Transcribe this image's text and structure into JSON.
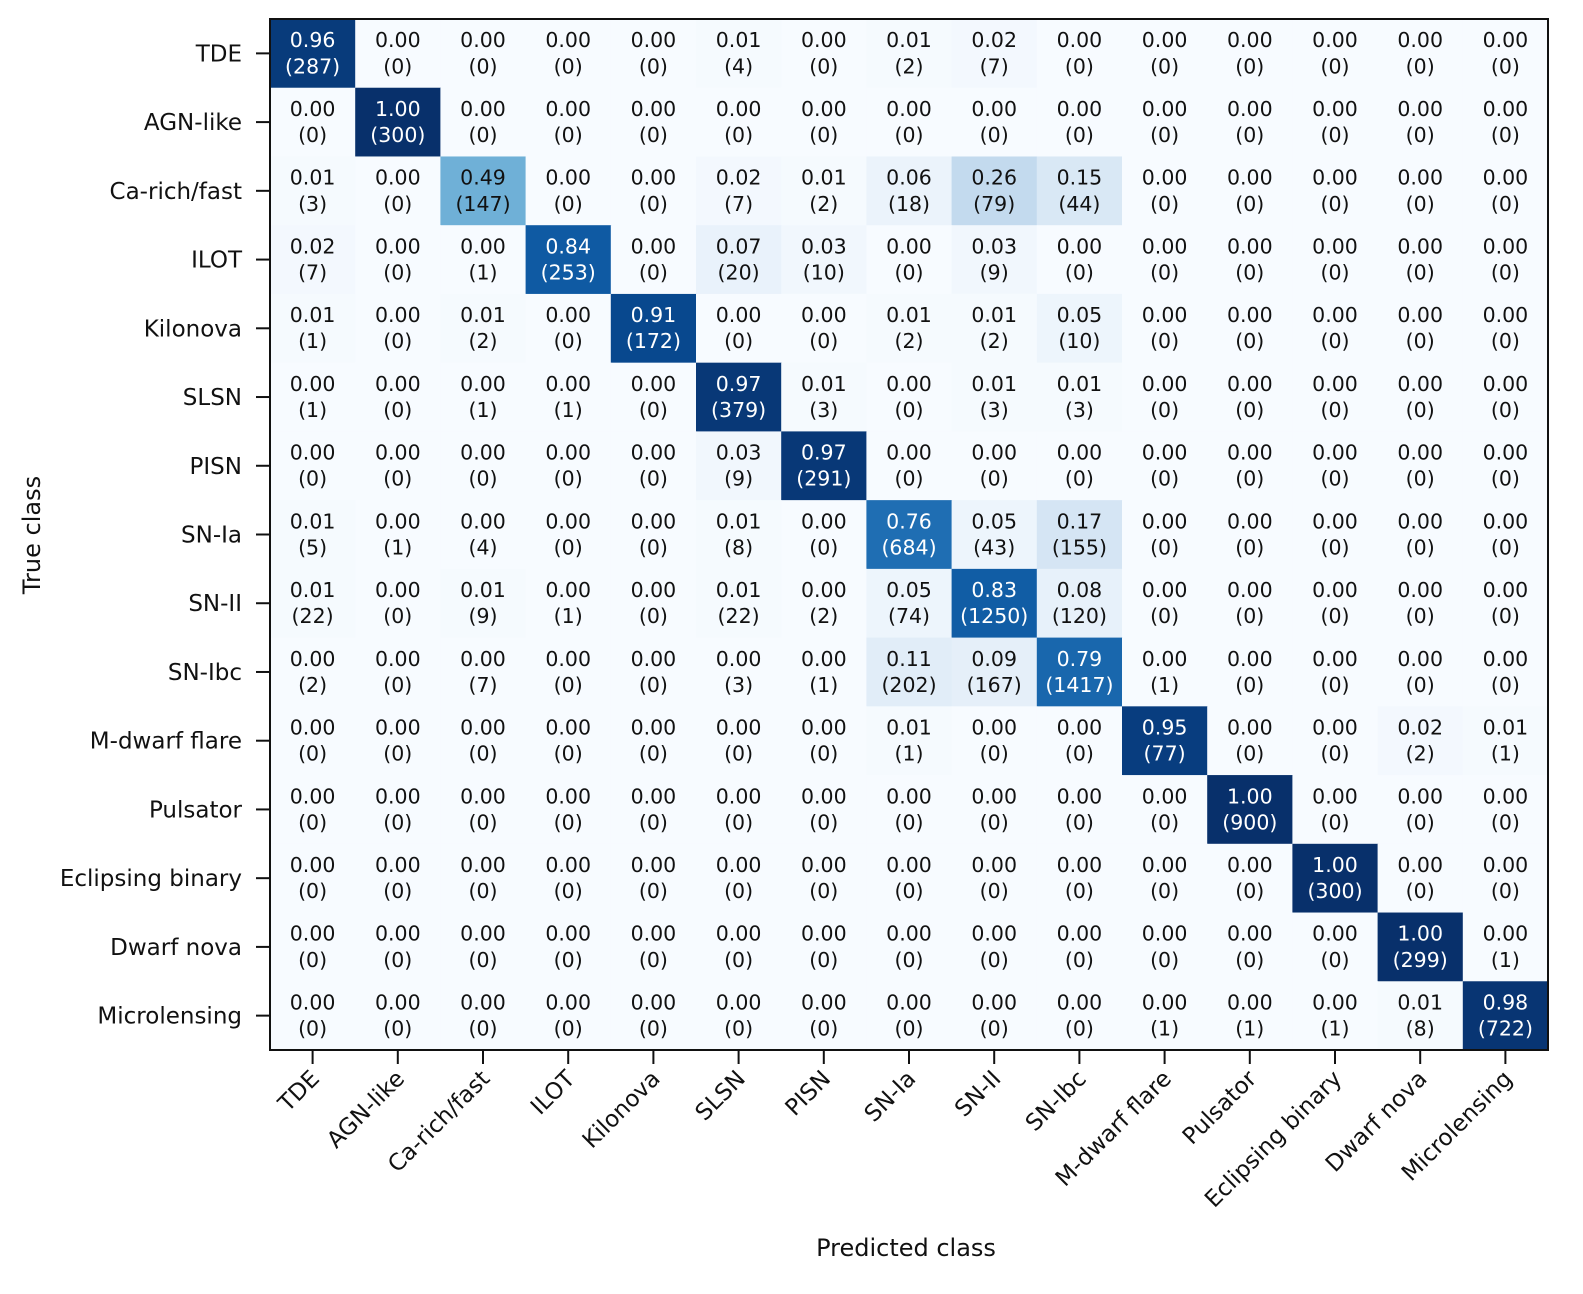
{
  "chart_data": {
    "type": "heatmap",
    "title": "",
    "xlabel": "Predicted class",
    "ylabel": "True class",
    "classes": [
      "TDE",
      "AGN-like",
      "Ca-rich/fast",
      "ILOT",
      "Kilonova",
      "SLSN",
      "PISN",
      "SN-Ia",
      "SN-II",
      "SN-Ibc",
      "M-dwarf flare",
      "Pulsator",
      "Eclipsing binary",
      "Dwarf nova",
      "Microlensing"
    ],
    "fractions": [
      [
        0.96,
        0.0,
        0.0,
        0.0,
        0.0,
        0.01,
        0.0,
        0.01,
        0.02,
        0.0,
        0.0,
        0.0,
        0.0,
        0.0,
        0.0
      ],
      [
        0.0,
        1.0,
        0.0,
        0.0,
        0.0,
        0.0,
        0.0,
        0.0,
        0.0,
        0.0,
        0.0,
        0.0,
        0.0,
        0.0,
        0.0
      ],
      [
        0.01,
        0.0,
        0.49,
        0.0,
        0.0,
        0.02,
        0.01,
        0.06,
        0.26,
        0.15,
        0.0,
        0.0,
        0.0,
        0.0,
        0.0
      ],
      [
        0.02,
        0.0,
        0.0,
        0.84,
        0.0,
        0.07,
        0.03,
        0.0,
        0.03,
        0.0,
        0.0,
        0.0,
        0.0,
        0.0,
        0.0
      ],
      [
        0.01,
        0.0,
        0.01,
        0.0,
        0.91,
        0.0,
        0.0,
        0.01,
        0.01,
        0.05,
        0.0,
        0.0,
        0.0,
        0.0,
        0.0
      ],
      [
        0.0,
        0.0,
        0.0,
        0.0,
        0.0,
        0.97,
        0.01,
        0.0,
        0.01,
        0.01,
        0.0,
        0.0,
        0.0,
        0.0,
        0.0
      ],
      [
        0.0,
        0.0,
        0.0,
        0.0,
        0.0,
        0.03,
        0.97,
        0.0,
        0.0,
        0.0,
        0.0,
        0.0,
        0.0,
        0.0,
        0.0
      ],
      [
        0.01,
        0.0,
        0.0,
        0.0,
        0.0,
        0.01,
        0.0,
        0.76,
        0.05,
        0.17,
        0.0,
        0.0,
        0.0,
        0.0,
        0.0
      ],
      [
        0.01,
        0.0,
        0.01,
        0.0,
        0.0,
        0.01,
        0.0,
        0.05,
        0.83,
        0.08,
        0.0,
        0.0,
        0.0,
        0.0,
        0.0
      ],
      [
        0.0,
        0.0,
        0.0,
        0.0,
        0.0,
        0.0,
        0.0,
        0.11,
        0.09,
        0.79,
        0.0,
        0.0,
        0.0,
        0.0,
        0.0
      ],
      [
        0.0,
        0.0,
        0.0,
        0.0,
        0.0,
        0.0,
        0.0,
        0.01,
        0.0,
        0.0,
        0.95,
        0.0,
        0.0,
        0.02,
        0.01
      ],
      [
        0.0,
        0.0,
        0.0,
        0.0,
        0.0,
        0.0,
        0.0,
        0.0,
        0.0,
        0.0,
        0.0,
        1.0,
        0.0,
        0.0,
        0.0
      ],
      [
        0.0,
        0.0,
        0.0,
        0.0,
        0.0,
        0.0,
        0.0,
        0.0,
        0.0,
        0.0,
        0.0,
        0.0,
        1.0,
        0.0,
        0.0
      ],
      [
        0.0,
        0.0,
        0.0,
        0.0,
        0.0,
        0.0,
        0.0,
        0.0,
        0.0,
        0.0,
        0.0,
        0.0,
        0.0,
        1.0,
        0.0
      ],
      [
        0.0,
        0.0,
        0.0,
        0.0,
        0.0,
        0.0,
        0.0,
        0.0,
        0.0,
        0.0,
        0.0,
        0.0,
        0.0,
        0.01,
        0.98
      ]
    ],
    "counts": [
      [
        287,
        0,
        0,
        0,
        0,
        4,
        0,
        2,
        7,
        0,
        0,
        0,
        0,
        0,
        0
      ],
      [
        0,
        300,
        0,
        0,
        0,
        0,
        0,
        0,
        0,
        0,
        0,
        0,
        0,
        0,
        0
      ],
      [
        3,
        0,
        147,
        0,
        0,
        7,
        2,
        18,
        79,
        44,
        0,
        0,
        0,
        0,
        0
      ],
      [
        7,
        0,
        1,
        253,
        0,
        20,
        10,
        0,
        9,
        0,
        0,
        0,
        0,
        0,
        0
      ],
      [
        1,
        0,
        2,
        0,
        172,
        0,
        0,
        2,
        2,
        10,
        0,
        0,
        0,
        0,
        0
      ],
      [
        1,
        0,
        1,
        1,
        0,
        379,
        3,
        0,
        3,
        3,
        0,
        0,
        0,
        0,
        0
      ],
      [
        0,
        0,
        0,
        0,
        0,
        9,
        291,
        0,
        0,
        0,
        0,
        0,
        0,
        0,
        0
      ],
      [
        5,
        1,
        4,
        0,
        0,
        8,
        0,
        684,
        43,
        155,
        0,
        0,
        0,
        0,
        0
      ],
      [
        22,
        0,
        9,
        1,
        0,
        22,
        2,
        74,
        1250,
        120,
        0,
        0,
        0,
        0,
        0
      ],
      [
        2,
        0,
        7,
        0,
        0,
        3,
        1,
        202,
        167,
        1417,
        1,
        0,
        0,
        0,
        0
      ],
      [
        0,
        0,
        0,
        0,
        0,
        0,
        0,
        1,
        0,
        0,
        77,
        0,
        0,
        2,
        1
      ],
      [
        0,
        0,
        0,
        0,
        0,
        0,
        0,
        0,
        0,
        0,
        0,
        900,
        0,
        0,
        0
      ],
      [
        0,
        0,
        0,
        0,
        0,
        0,
        0,
        0,
        0,
        0,
        0,
        0,
        300,
        0,
        0
      ],
      [
        0,
        0,
        0,
        0,
        0,
        0,
        0,
        0,
        0,
        0,
        0,
        0,
        0,
        299,
        1
      ],
      [
        0,
        0,
        0,
        0,
        0,
        0,
        0,
        0,
        0,
        0,
        1,
        1,
        1,
        8,
        722
      ]
    ],
    "value_range": [
      0,
      1
    ],
    "colormap": "Blues",
    "colors": {
      "low": "#f7fbff",
      "high": "#08306b",
      "text_dark": "#111111",
      "text_light": "#ffffff"
    },
    "grid": false,
    "legend": "none"
  }
}
